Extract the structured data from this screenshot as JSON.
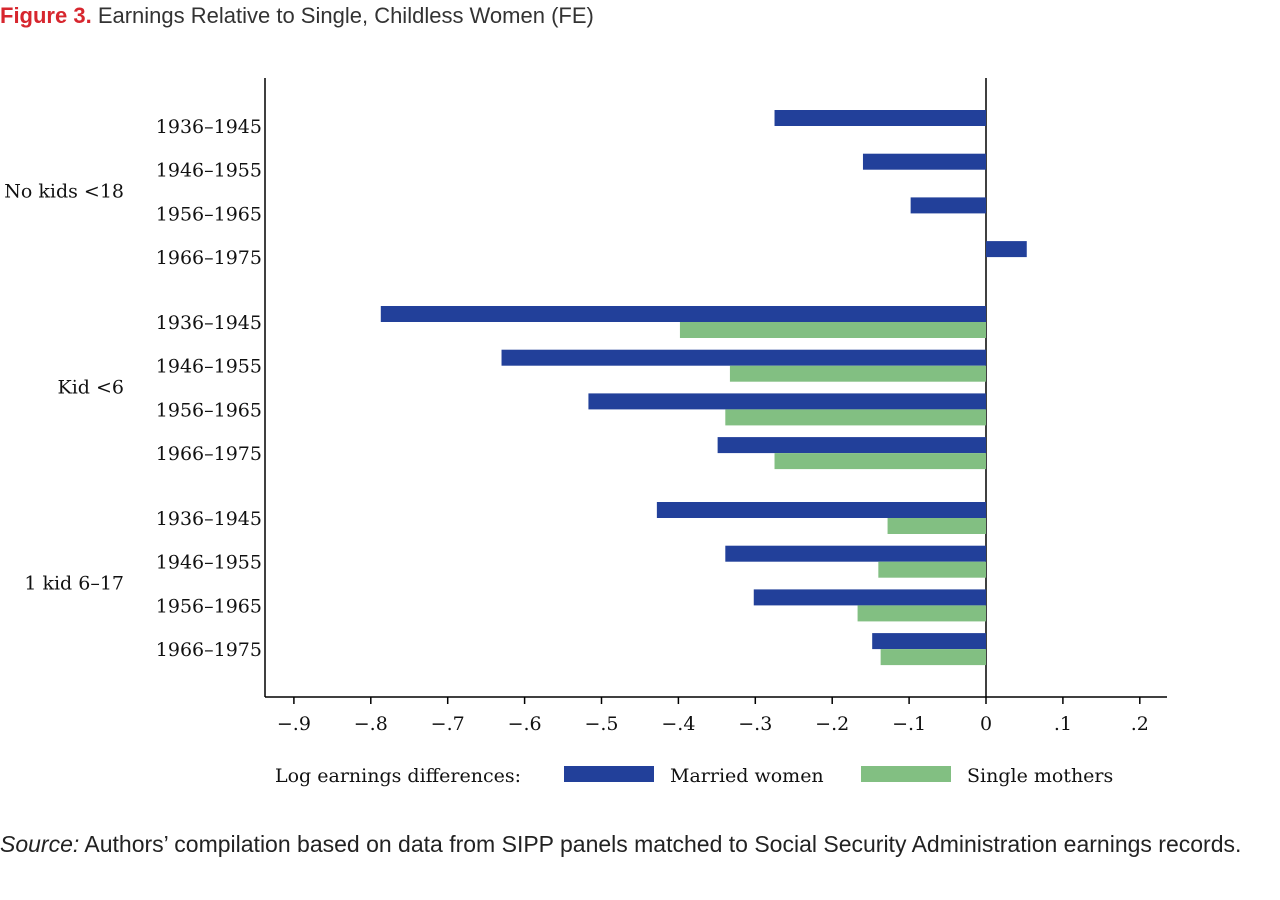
{
  "figure": {
    "label": "Figure 3.",
    "title": "Earnings Relative to Single, Childless Women (FE)"
  },
  "source": {
    "label": "Source:",
    "text": " Authors’ compilation based on data from SIPP panels matched to Social Security Administration earnings records."
  },
  "colors": {
    "married": "#22409a",
    "single": "#82bf82",
    "title_accent": "#d7262e"
  },
  "chart_data": {
    "type": "bar",
    "orientation": "horizontal",
    "title": "",
    "xlabel": "",
    "ylabel": "",
    "xlim": [
      -0.93,
      0.23
    ],
    "x_ticks": [
      "−.9",
      "−.8",
      "−.7",
      "−.6",
      "−.5",
      "−.4",
      "−.3",
      "−.2",
      "−.1",
      "0",
      ".1",
      ".2"
    ],
    "x_tick_values": [
      -0.9,
      -0.8,
      -0.7,
      -0.6,
      -0.5,
      -0.4,
      -0.3,
      -0.2,
      -0.1,
      0,
      0.1,
      0.2
    ],
    "grid": false,
    "legend": {
      "position": "bottom",
      "title": "Log earnings differences:",
      "entries": [
        "Married women",
        "Single mothers"
      ]
    },
    "groups": [
      {
        "label": "No kids <18",
        "rows": [
          {
            "label": "1936–1945",
            "married": -0.275,
            "single": null
          },
          {
            "label": "1946–1955",
            "married": -0.16,
            "single": null
          },
          {
            "label": "1956–1965",
            "married": -0.098,
            "single": null
          },
          {
            "label": "1966–1975",
            "married": 0.053,
            "single": null
          }
        ]
      },
      {
        "label": "Kid <6",
        "rows": [
          {
            "label": "1936–1945",
            "married": -0.787,
            "single": -0.398
          },
          {
            "label": "1946–1955",
            "married": -0.63,
            "single": -0.333
          },
          {
            "label": "1956–1965",
            "married": -0.517,
            "single": -0.339
          },
          {
            "label": "1966–1975",
            "married": -0.349,
            "single": -0.275
          }
        ]
      },
      {
        "label": "1 kid 6–17",
        "rows": [
          {
            "label": "1936–1945",
            "married": -0.428,
            "single": -0.128
          },
          {
            "label": "1946–1955",
            "married": -0.339,
            "single": -0.14
          },
          {
            "label": "1956–1965",
            "married": -0.302,
            "single": -0.167
          },
          {
            "label": "1966–1975",
            "married": -0.148,
            "single": -0.137
          }
        ]
      }
    ]
  }
}
